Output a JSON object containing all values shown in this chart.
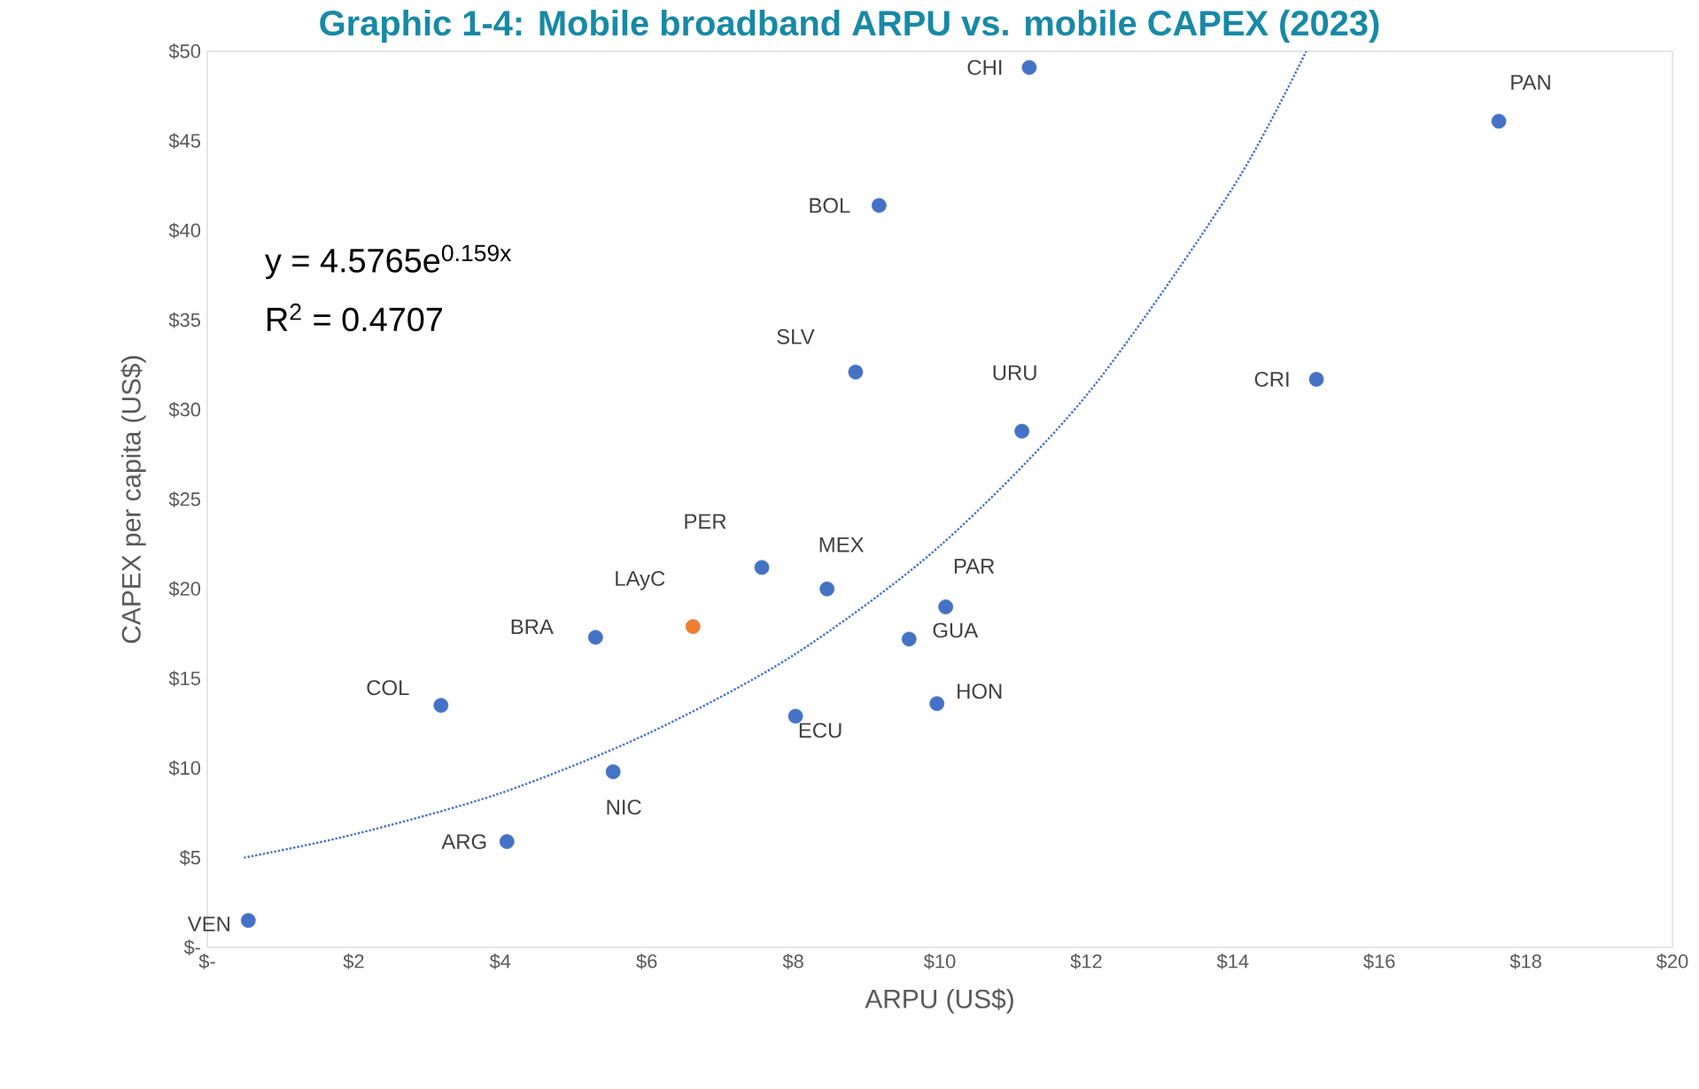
{
  "chart_data": {
    "type": "scatter",
    "title": "Graphic 1-4: Mobile broadband ARPU vs. mobile CAPEX (2023)",
    "xlabel": "ARPU (US$)",
    "ylabel": "CAPEX per capita (US$)",
    "xlim": [
      0,
      20
    ],
    "ylim": [
      0,
      50
    ],
    "xticks": [
      {
        "value": 0,
        "label": "$-"
      },
      {
        "value": 2,
        "label": "$2"
      },
      {
        "value": 4,
        "label": "$4"
      },
      {
        "value": 6,
        "label": "$6"
      },
      {
        "value": 8,
        "label": "$8"
      },
      {
        "value": 10,
        "label": "$10"
      },
      {
        "value": 12,
        "label": "$12"
      },
      {
        "value": 14,
        "label": "$14"
      },
      {
        "value": 16,
        "label": "$16"
      },
      {
        "value": 18,
        "label": "$18"
      },
      {
        "value": 20,
        "label": "$20"
      }
    ],
    "yticks": [
      {
        "value": 0,
        "label": "$-"
      },
      {
        "value": 5,
        "label": "$5"
      },
      {
        "value": 10,
        "label": "$10"
      },
      {
        "value": 15,
        "label": "$15"
      },
      {
        "value": 20,
        "label": "$20"
      },
      {
        "value": 25,
        "label": "$25"
      },
      {
        "value": 30,
        "label": "$30"
      },
      {
        "value": 35,
        "label": "$35"
      },
      {
        "value": 40,
        "label": "$40"
      },
      {
        "value": 45,
        "label": "$45"
      },
      {
        "value": 50,
        "label": "$50"
      }
    ],
    "grid": false,
    "series": [
      {
        "type": "scatter",
        "x": [
          0.56,
          4.09,
          3.19,
          5.54,
          5.3,
          6.63,
          7.57,
          8.46,
          8.03,
          9.58,
          10.08,
          9.96,
          11.12,
          8.85,
          9.17,
          11.22,
          15.14,
          17.63
        ],
        "values": [
          1.5,
          5.9,
          13.5,
          9.8,
          17.3,
          17.9,
          21.2,
          20.0,
          12.9,
          17.2,
          19.0,
          13.6,
          28.8,
          32.1,
          41.4,
          49.1,
          31.7,
          46.1
        ],
        "colors": [
          "#4472c4",
          "#4472c4",
          "#4472c4",
          "#4472c4",
          "#4472c4",
          "#ed7d31",
          "#4472c4",
          "#4472c4",
          "#4472c4",
          "#4472c4",
          "#4472c4",
          "#4472c4",
          "#4472c4",
          "#4472c4",
          "#4472c4",
          "#4472c4",
          "#4472c4",
          "#4472c4"
        ]
      },
      {
        "type": "line",
        "x": [
          0.5,
          2,
          4,
          6,
          8,
          10,
          12,
          14,
          15.0
        ],
        "values": [
          5.0,
          6.3,
          8.6,
          11.9,
          16.3,
          22.4,
          30.8,
          42.4,
          50.0
        ],
        "color": "#4472c4",
        "line_style": "dotted"
      }
    ],
    "annotations": [
      {
        "text": "VEN",
        "x": 0.56,
        "y": 1.5
      },
      {
        "text": "ARG",
        "x": 4.09,
        "y": 5.9
      },
      {
        "text": "COL",
        "x": 3.19,
        "y": 13.5
      },
      {
        "text": "NIC",
        "x": 5.54,
        "y": 9.8
      },
      {
        "text": "BRA",
        "x": 5.3,
        "y": 17.3
      },
      {
        "text": "LAyC",
        "x": 6.63,
        "y": 17.9
      },
      {
        "text": "PER",
        "x": 7.57,
        "y": 21.2
      },
      {
        "text": "MEX",
        "x": 8.46,
        "y": 20.0
      },
      {
        "text": "ECU",
        "x": 8.03,
        "y": 12.9
      },
      {
        "text": "GUA",
        "x": 9.58,
        "y": 17.2
      },
      {
        "text": "PAR",
        "x": 10.08,
        "y": 19.0
      },
      {
        "text": "HON",
        "x": 9.96,
        "y": 13.6
      },
      {
        "text": "URU",
        "x": 11.12,
        "y": 28.8
      },
      {
        "text": "SLV",
        "x": 8.85,
        "y": 32.1
      },
      {
        "text": "BOL",
        "x": 9.17,
        "y": 41.4
      },
      {
        "text": "CHI",
        "x": 11.22,
        "y": 49.1
      },
      {
        "text": "CRI",
        "x": 15.14,
        "y": 31.7
      },
      {
        "text": "PAN",
        "x": 17.63,
        "y": 46.1
      },
      "y = 4.5765e$^{0.159x}$",
      "R$^{2}$ = 0.4707"
    ]
  }
}
